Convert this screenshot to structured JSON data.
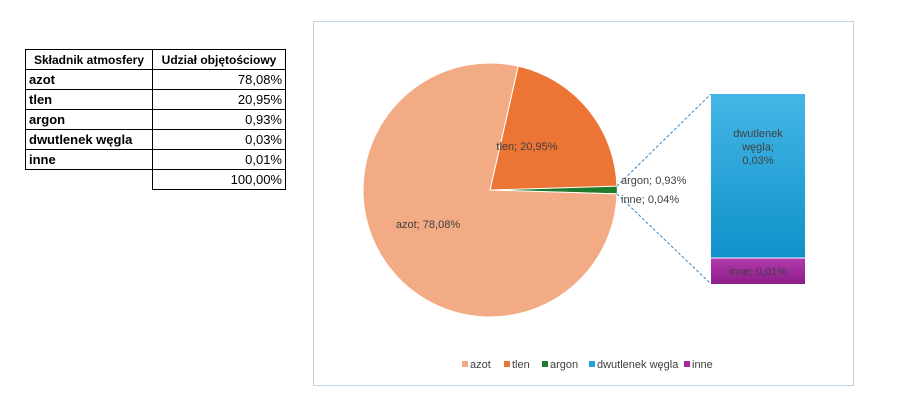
{
  "table": {
    "headers": [
      "Składnik atmosfery",
      "Udział objętościowy"
    ],
    "rows": [
      {
        "name": "azot",
        "value": "78,08%"
      },
      {
        "name": "tlen",
        "value": "20,95%"
      },
      {
        "name": "argon",
        "value": "0,93%"
      },
      {
        "name": "dwutlenek węgla",
        "value": "0,03%"
      },
      {
        "name": "inne",
        "value": "0,01%"
      }
    ],
    "total": "100,00%"
  },
  "colors": {
    "azot": "#f2ab84",
    "tlen": "#ec7434",
    "argon": "#1f7a2b",
    "dwutlenek_wegla": "#1ea6dc",
    "inne": "#a2289c",
    "connector": "#3b86c6",
    "frame": "#bcd5e6"
  },
  "chart_data": {
    "type": "pie",
    "subtype": "bar-of-pie",
    "slices": [
      {
        "name": "azot",
        "value": 78.08,
        "label": "azot; 78,08%",
        "color": "#f2ab84"
      },
      {
        "name": "tlen",
        "value": 20.95,
        "label": "tlen; 20,95%",
        "color": "#ec7434"
      },
      {
        "name": "argon",
        "value": 0.93,
        "label": "argon; 0,93%",
        "color": "#1f7a2b"
      },
      {
        "name": "inne",
        "value": 0.04,
        "label": "inne; 0,04%",
        "color": "#bfbfbf"
      }
    ],
    "bar": [
      {
        "name": "dwutlenek węgla",
        "value": 0.03,
        "label_lines": [
          "dwutlenek",
          "węgla;",
          "0,03%"
        ],
        "color": "#1ea6dc"
      },
      {
        "name": "inne",
        "value": 0.01,
        "label": "inne; 0,01%",
        "color": "#a2289c"
      }
    ],
    "legend": {
      "position": "bottom",
      "entries": [
        {
          "name": "azot",
          "color": "#f2ab84"
        },
        {
          "name": "tlen",
          "color": "#ec7434"
        },
        {
          "name": "argon",
          "color": "#1f7a2b"
        },
        {
          "name": "dwutlenek węgla",
          "color": "#1ea6dc"
        },
        {
          "name": "inne",
          "color": "#a2289c"
        }
      ]
    }
  }
}
